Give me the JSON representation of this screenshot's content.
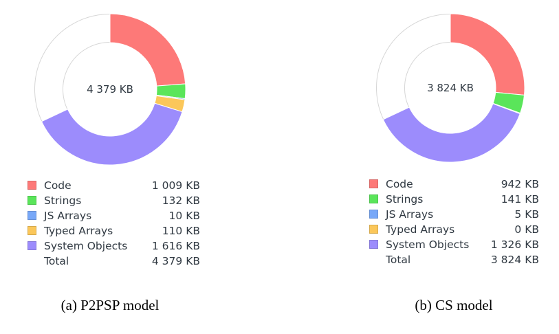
{
  "chart_data": [
    {
      "type": "pie",
      "caption": "(a) P2PSP model",
      "center_label": "4 379 KB",
      "categories": [
        "Code",
        "Strings",
        "JS Arrays",
        "Typed Arrays",
        "System Objects"
      ],
      "values": [
        1009,
        132,
        10,
        110,
        1616
      ],
      "value_labels": [
        "1 009 KB",
        "132 KB",
        "10 KB",
        "110 KB",
        "1 616 KB"
      ],
      "colors": [
        "#fd7978",
        "#5ae55a",
        "#78a8f8",
        "#fbc75a",
        "#9c8cfc"
      ],
      "total_label": "Total",
      "total_value": "4 379 KB"
    },
    {
      "type": "pie",
      "caption": "(b) CS model",
      "center_label": "3 824 KB",
      "categories": [
        "Code",
        "Strings",
        "JS Arrays",
        "Typed Arrays",
        "System Objects"
      ],
      "values": [
        942,
        141,
        5,
        0,
        1326
      ],
      "value_labels": [
        "942 KB",
        "141 KB",
        "5 KB",
        "0 KB",
        "1 326 KB"
      ],
      "colors": [
        "#fd7978",
        "#5ae55a",
        "#78a8f8",
        "#fbc75a",
        "#9c8cfc"
      ],
      "total_label": "Total",
      "total_value": "3 824 KB"
    }
  ]
}
